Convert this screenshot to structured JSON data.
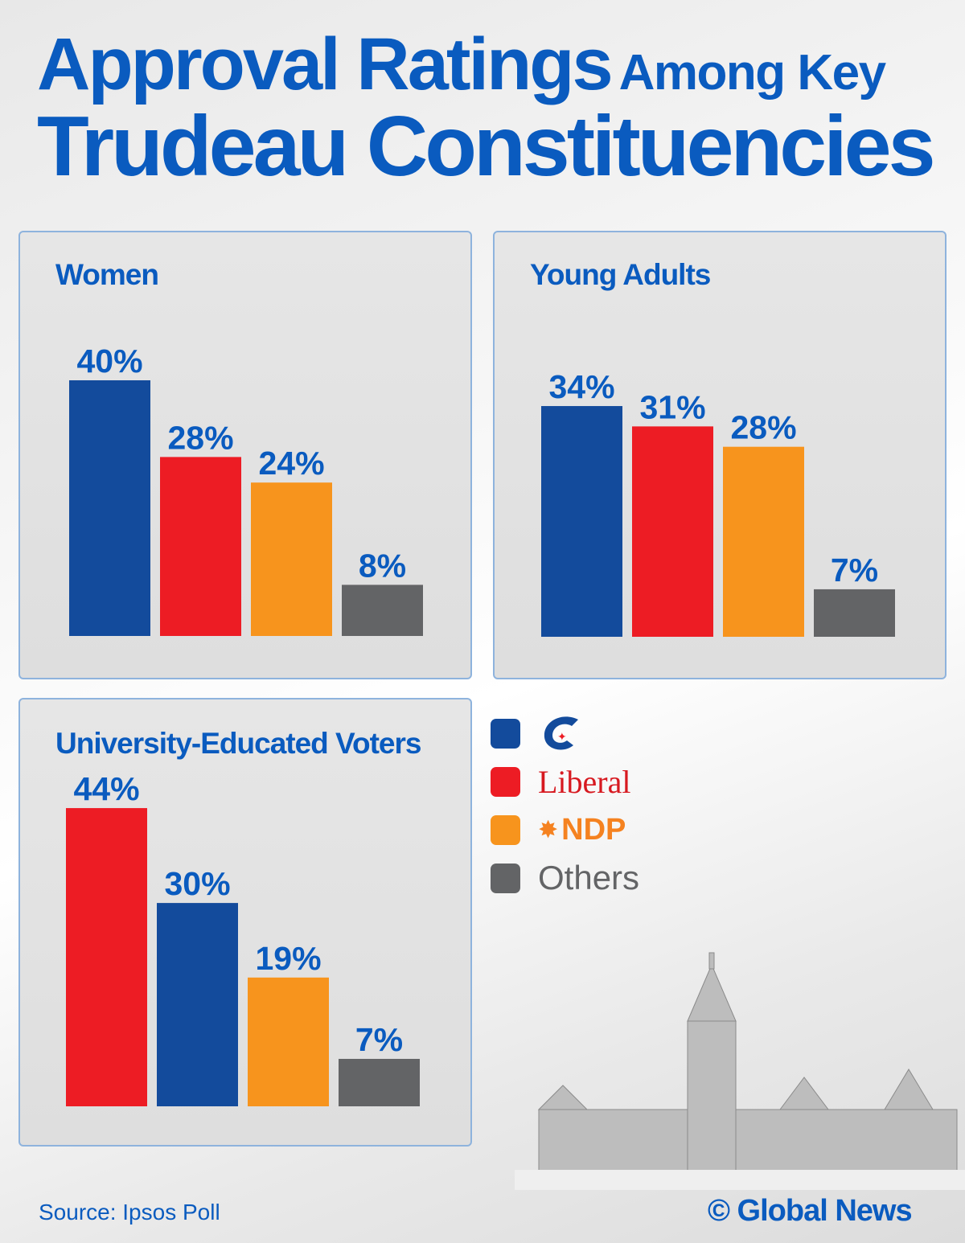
{
  "title": {
    "line1_main": "Approval Ratings",
    "line1_small": "Among Key",
    "line2": "Trudeau Constituencies"
  },
  "colors": {
    "Conservative": "#134b9c",
    "Liberal": "#ed1c24",
    "NDP": "#f7941d",
    "Others": "#636466",
    "text": "#0a5bbf"
  },
  "chart_data": [
    {
      "type": "bar",
      "title": "Women",
      "categories": [
        "Conservative",
        "Liberal",
        "NDP",
        "Others"
      ],
      "values": [
        40,
        28,
        24,
        8
      ],
      "data_labels": [
        "40%",
        "28%",
        "24%",
        "8%"
      ]
    },
    {
      "type": "bar",
      "title": "Young Adults",
      "categories": [
        "Conservative",
        "Liberal",
        "NDP",
        "Others"
      ],
      "values": [
        34,
        31,
        28,
        7
      ],
      "data_labels": [
        "34%",
        "31%",
        "28%",
        "7%"
      ]
    },
    {
      "type": "bar",
      "title": "University-Educated Voters",
      "categories": [
        "Liberal",
        "Conservative",
        "NDP",
        "Others"
      ],
      "values": [
        44,
        30,
        19,
        7
      ],
      "data_labels": [
        "44%",
        "30%",
        "19%",
        "7%"
      ]
    }
  ],
  "legend": [
    {
      "party": "Conservative",
      "label": "C",
      "icon": "conservative-logo"
    },
    {
      "party": "Liberal",
      "label": "Liberal",
      "icon": "liberal-logo"
    },
    {
      "party": "NDP",
      "label": "NDP",
      "icon": "ndp-logo"
    },
    {
      "party": "Others",
      "label": "Others"
    }
  ],
  "footer": {
    "source": "Source: Ipsos Poll",
    "brand": "© Global News"
  }
}
